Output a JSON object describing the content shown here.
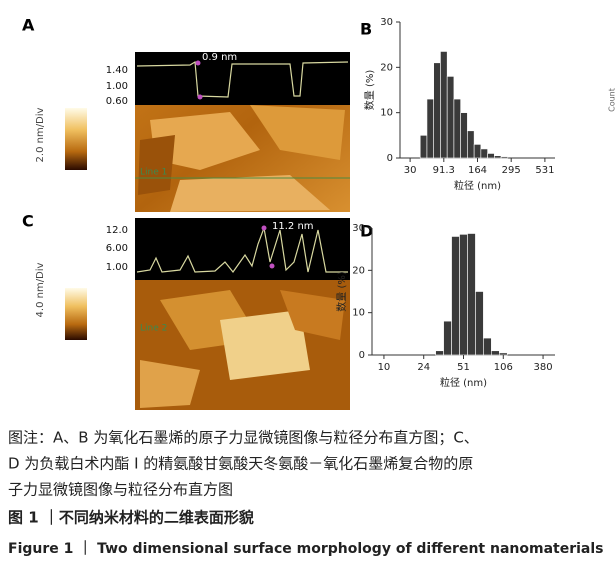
{
  "panels": {
    "a": {
      "letter": "A",
      "scale_label": "2.0 nm/Div",
      "profile_ticks": [
        "1.40",
        "1.00",
        "0.60"
      ],
      "annotation": "0.9 nm",
      "line_label": "Line 1"
    },
    "c": {
      "letter": "C",
      "scale_label": "4.0 nm/Div",
      "profile_ticks": [
        "12.0",
        "6.00",
        "1.00"
      ],
      "annotation": "11.2 nm",
      "line_label": "Line 2"
    },
    "b_letter": "B",
    "d_letter": "D",
    "edge_label": "Count"
  },
  "chart_data": [
    {
      "type": "bar",
      "x_label": "粒径 (nm)",
      "y_label": "数量 (%)",
      "categories": [
        null,
        "30",
        null,
        null,
        null,
        null,
        "91.3",
        null,
        null,
        null,
        null,
        "164",
        null,
        null,
        null,
        null,
        "295",
        null,
        null,
        null,
        null,
        "531",
        null
      ],
      "values": [
        0,
        0,
        0,
        5,
        13,
        21,
        23.5,
        18,
        13,
        10,
        6,
        3,
        2,
        1,
        0.5,
        0.3,
        0,
        0,
        0,
        0,
        0,
        0,
        0
      ],
      "color": "#3a3a3a",
      "ylim": [
        0,
        30
      ],
      "yticks": [
        0,
        10,
        20,
        30
      ]
    },
    {
      "type": "bar",
      "x_label": "粒径 (nm)",
      "y_label": "数量 (%)",
      "categories": [
        null,
        "10",
        null,
        null,
        null,
        null,
        "24",
        null,
        null,
        null,
        null,
        "51",
        null,
        null,
        null,
        null,
        "106",
        null,
        null,
        null,
        null,
        "380",
        null
      ],
      "values": [
        0,
        0,
        0,
        0,
        0,
        0,
        0,
        0,
        1,
        8,
        28,
        28.5,
        28.7,
        15,
        4,
        1,
        0.5,
        0,
        0,
        0,
        0,
        0,
        0
      ],
      "color": "#3a3a3a",
      "ylim": [
        0,
        30
      ],
      "yticks": [
        0,
        10,
        20,
        30
      ]
    }
  ],
  "caption": {
    "note_lines": [
      "图注：A、B 为氧化石墨烯的原子力显微镜图像与粒径分布直方图；C、",
      "D 为负载白术内酯 Ⅰ 的精氨酸甘氨酸天冬氨酸－氧化石墨烯复合物的原",
      "子力显微镜图像与粒径分布直方图"
    ],
    "title_cn": "图 1 ｜不同纳米材料的二维表面形貌",
    "title_en": "Figure 1 ｜ Two dimensional surface morphology of different nanomaterials"
  }
}
